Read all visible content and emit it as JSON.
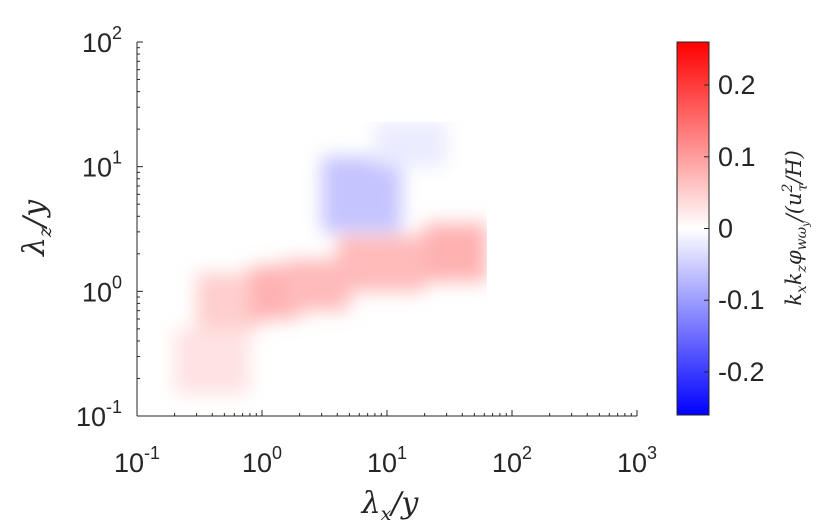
{
  "chart_data": {
    "type": "heatmap",
    "title": "",
    "xlabel": "λx/y",
    "ylabel": "λz/y",
    "colorbar_label": "kxkzφwωy/(uτ²/H)",
    "x_scale": "log",
    "y_scale": "log",
    "xlim": [
      0.1,
      1000
    ],
    "ylim": [
      0.1,
      100
    ],
    "x_ticks": [
      {
        "value": 0.1,
        "base": "10",
        "exp": "-1"
      },
      {
        "value": 1,
        "base": "10",
        "exp": "0"
      },
      {
        "value": 10,
        "base": "10",
        "exp": "1"
      },
      {
        "value": 100,
        "base": "10",
        "exp": "2"
      },
      {
        "value": 1000,
        "base": "10",
        "exp": "3"
      }
    ],
    "y_ticks": [
      {
        "value": 0.1,
        "base": "10",
        "exp": "-1"
      },
      {
        "value": 1,
        "base": "10",
        "exp": "0"
      },
      {
        "value": 10,
        "base": "10",
        "exp": "1"
      },
      {
        "value": 100,
        "base": "10",
        "exp": "2"
      }
    ],
    "colormap": {
      "min": -0.26,
      "max": 0.26,
      "low_color": "#0000ff",
      "mid_color": "#ffffff",
      "high_color": "#ff0000"
    },
    "colorbar_ticks": [
      {
        "value": 0.2,
        "label": "0.2"
      },
      {
        "value": 0.1,
        "label": "0.1"
      },
      {
        "value": 0,
        "label": "0"
      },
      {
        "value": -0.1,
        "label": "-0.1"
      },
      {
        "value": -0.2,
        "label": "-0.2"
      }
    ],
    "data_extent": {
      "x_max": 63,
      "y_max": 23
    },
    "regions": [
      {
        "x": [
          0.3,
          1.0
        ],
        "y": [
          0.5,
          1.4
        ],
        "value": 0.05
      },
      {
        "x": [
          0.8,
          2.0
        ],
        "y": [
          0.6,
          1.6
        ],
        "value": 0.08
      },
      {
        "x": [
          1.5,
          5.0
        ],
        "y": [
          0.7,
          1.8
        ],
        "value": 0.07
      },
      {
        "x": [
          4.0,
          20.0
        ],
        "y": [
          1.0,
          2.8
        ],
        "value": 0.07
      },
      {
        "x": [
          20.0,
          63.0
        ],
        "y": [
          1.2,
          3.5
        ],
        "value": 0.08
      },
      {
        "x": [
          3.0,
          13.0
        ],
        "y": [
          3.0,
          12.0
        ],
        "value": -0.06
      },
      {
        "x": [
          8.0,
          30.0
        ],
        "y": [
          10.0,
          23.0
        ],
        "value": -0.02
      },
      {
        "x": [
          0.2,
          0.8
        ],
        "y": [
          0.15,
          0.5
        ],
        "value": 0.03
      }
    ]
  }
}
